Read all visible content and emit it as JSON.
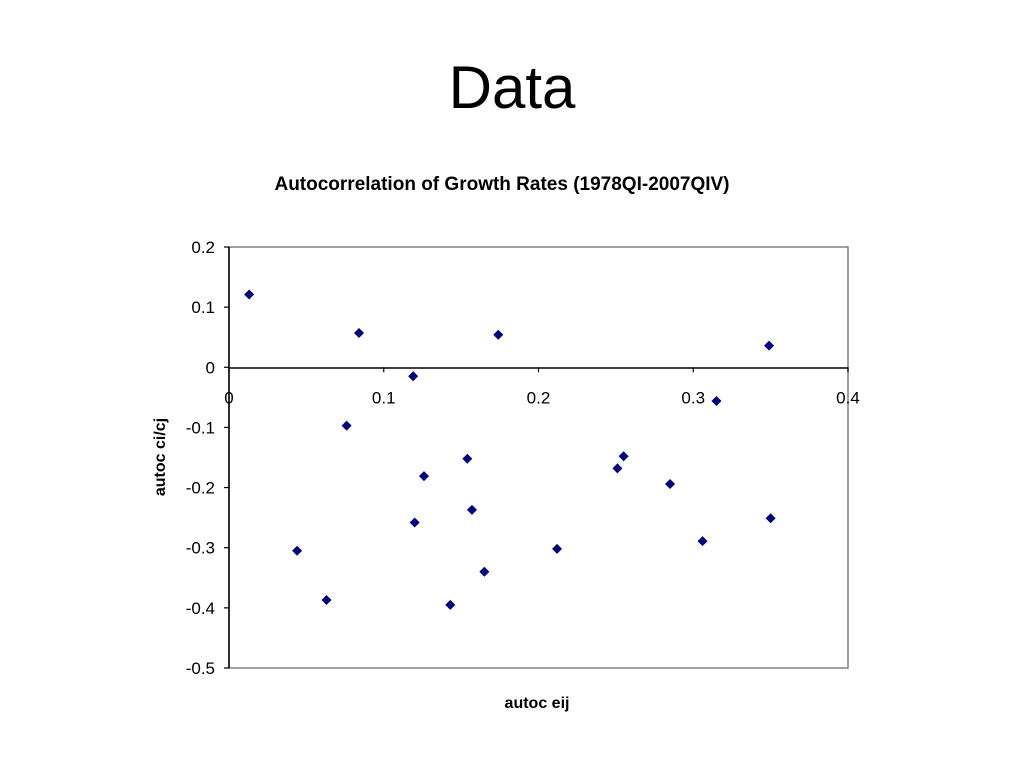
{
  "slide": {
    "title": "Data"
  },
  "chart_data": {
    "type": "scatter",
    "title": "Autocorrelation of Growth Rates (1978QI-2007QIV)",
    "xlabel": "autoc eij",
    "ylabel": "autoc ci/cj",
    "xlim": [
      0,
      0.4
    ],
    "ylim": [
      -0.5,
      0.2
    ],
    "xticks": [
      0,
      0.1,
      0.2,
      0.3,
      0.4
    ],
    "xtick_labels": [
      "0",
      "0.1",
      "0.2",
      "0.3",
      "0.4"
    ],
    "yticks": [
      0.2,
      0.1,
      0,
      -0.1,
      -0.2,
      -0.3,
      -0.4,
      -0.5
    ],
    "ytick_labels": [
      "0.2",
      "0.1",
      "0",
      "-0.1",
      "-0.2",
      "-0.3",
      "-0.4",
      "-0.5"
    ],
    "grid": false,
    "legend": false,
    "marker": "diamond",
    "colors": {
      "marker": "#000080",
      "axis": "#000000",
      "frame": "#808080"
    },
    "series": [
      {
        "points": [
          {
            "x": 0.013,
            "y": 0.121
          },
          {
            "x": 0.084,
            "y": 0.057
          },
          {
            "x": 0.174,
            "y": 0.054
          },
          {
            "x": 0.349,
            "y": 0.036
          },
          {
            "x": 0.119,
            "y": -0.015
          },
          {
            "x": 0.315,
            "y": -0.056
          },
          {
            "x": 0.076,
            "y": -0.097
          },
          {
            "x": 0.154,
            "y": -0.152
          },
          {
            "x": 0.255,
            "y": -0.148
          },
          {
            "x": 0.251,
            "y": -0.168
          },
          {
            "x": 0.126,
            "y": -0.181
          },
          {
            "x": 0.285,
            "y": -0.194
          },
          {
            "x": 0.157,
            "y": -0.237
          },
          {
            "x": 0.12,
            "y": -0.258
          },
          {
            "x": 0.35,
            "y": -0.251
          },
          {
            "x": 0.306,
            "y": -0.289
          },
          {
            "x": 0.044,
            "y": -0.305
          },
          {
            "x": 0.212,
            "y": -0.302
          },
          {
            "x": 0.165,
            "y": -0.34
          },
          {
            "x": 0.063,
            "y": -0.387
          },
          {
            "x": 0.143,
            "y": -0.395
          }
        ]
      }
    ]
  }
}
